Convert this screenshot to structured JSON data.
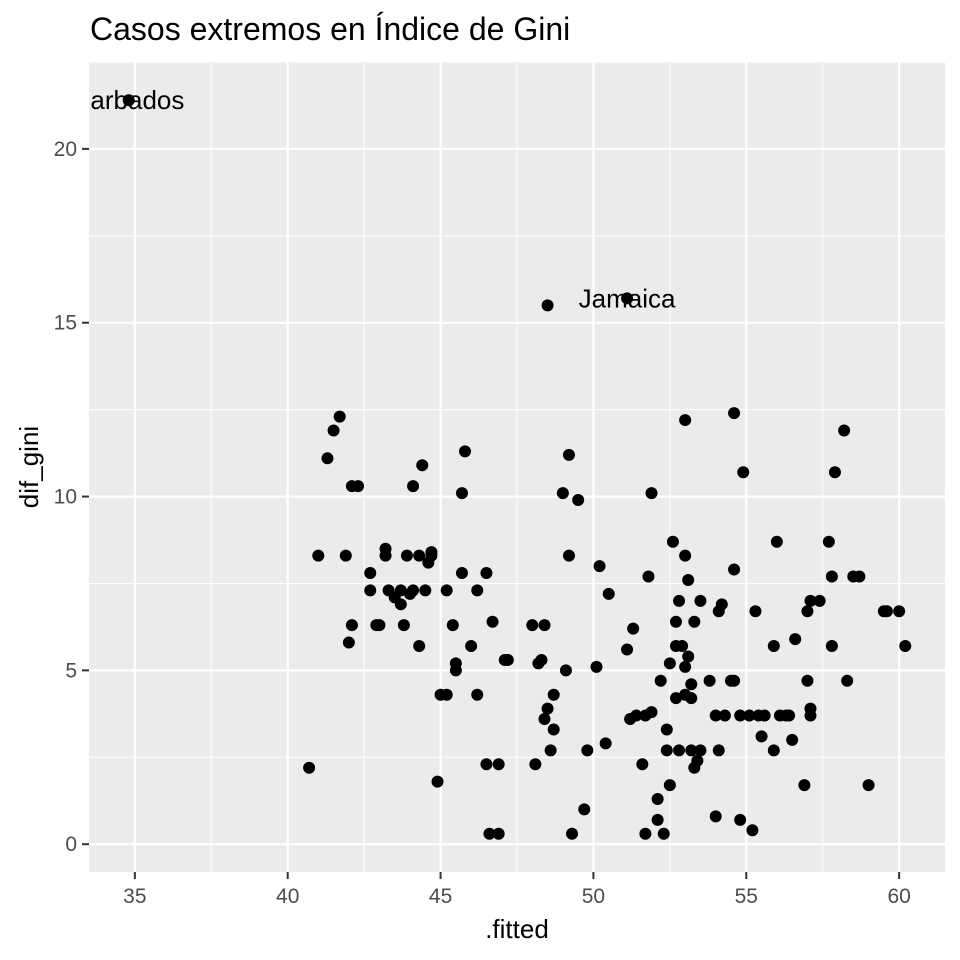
{
  "chart_data": {
    "type": "scatter",
    "title": "Casos extremos en Índice de Gini",
    "xlabel": ".fitted",
    "ylabel": "dif_gini",
    "xlim": [
      33.5,
      61.5
    ],
    "ylim": [
      -0.8,
      22.5
    ],
    "xticks": [
      "35",
      "40",
      "45",
      "50",
      "55",
      "60"
    ],
    "yticks": [
      "0",
      "5",
      "10",
      "15",
      "20"
    ],
    "grid": true,
    "background": "#EBEBEB",
    "gridline_color": "#FFFFFF",
    "point_color": "#000000",
    "points": [
      [
        34.8,
        21.4
      ],
      [
        51.1,
        15.7
      ],
      [
        48.5,
        15.5
      ],
      [
        40.7,
        2.2
      ],
      [
        41.0,
        8.3
      ],
      [
        41.3,
        11.1
      ],
      [
        41.5,
        11.9
      ],
      [
        41.7,
        12.3
      ],
      [
        41.9,
        8.3
      ],
      [
        42.0,
        5.8
      ],
      [
        42.1,
        6.3
      ],
      [
        42.1,
        10.3
      ],
      [
        42.3,
        10.3
      ],
      [
        42.7,
        7.3
      ],
      [
        42.7,
        7.8
      ],
      [
        42.9,
        6.3
      ],
      [
        43.0,
        6.3
      ],
      [
        43.2,
        8.3
      ],
      [
        43.2,
        8.5
      ],
      [
        43.3,
        7.3
      ],
      [
        43.5,
        7.1
      ],
      [
        43.7,
        7.3
      ],
      [
        43.7,
        6.9
      ],
      [
        43.8,
        6.3
      ],
      [
        43.9,
        8.3
      ],
      [
        44.0,
        7.2
      ],
      [
        44.1,
        10.3
      ],
      [
        44.1,
        7.3
      ],
      [
        44.3,
        8.3
      ],
      [
        44.3,
        5.7
      ],
      [
        44.4,
        10.9
      ],
      [
        44.5,
        7.3
      ],
      [
        44.6,
        8.1
      ],
      [
        44.7,
        8.4
      ],
      [
        44.7,
        8.3
      ],
      [
        44.9,
        1.8
      ],
      [
        45.0,
        4.3
      ],
      [
        45.2,
        4.3
      ],
      [
        45.2,
        7.3
      ],
      [
        45.4,
        6.3
      ],
      [
        45.5,
        5.2
      ],
      [
        45.5,
        5.0
      ],
      [
        45.7,
        7.8
      ],
      [
        45.7,
        10.1
      ],
      [
        45.8,
        11.3
      ],
      [
        46.0,
        5.7
      ],
      [
        46.2,
        4.3
      ],
      [
        46.2,
        7.3
      ],
      [
        46.5,
        7.8
      ],
      [
        46.5,
        2.3
      ],
      [
        46.6,
        0.3
      ],
      [
        46.7,
        6.4
      ],
      [
        46.9,
        2.3
      ],
      [
        46.9,
        0.3
      ],
      [
        47.1,
        5.3
      ],
      [
        47.2,
        5.3
      ],
      [
        48.0,
        6.3
      ],
      [
        48.1,
        2.3
      ],
      [
        48.2,
        5.2
      ],
      [
        48.3,
        5.3
      ],
      [
        48.4,
        3.6
      ],
      [
        48.4,
        6.3
      ],
      [
        48.5,
        3.9
      ],
      [
        48.6,
        2.7
      ],
      [
        48.7,
        3.3
      ],
      [
        48.7,
        4.3
      ],
      [
        49.0,
        10.1
      ],
      [
        49.1,
        5.0
      ],
      [
        49.2,
        11.2
      ],
      [
        49.2,
        8.3
      ],
      [
        49.3,
        0.3
      ],
      [
        49.5,
        9.9
      ],
      [
        49.7,
        1.0
      ],
      [
        49.8,
        2.7
      ],
      [
        50.1,
        5.1
      ],
      [
        50.2,
        8.0
      ],
      [
        50.4,
        2.9
      ],
      [
        50.5,
        7.2
      ],
      [
        51.1,
        5.6
      ],
      [
        51.2,
        3.6
      ],
      [
        51.3,
        6.2
      ],
      [
        51.4,
        3.7
      ],
      [
        51.6,
        2.3
      ],
      [
        51.7,
        0.3
      ],
      [
        51.7,
        3.7
      ],
      [
        51.8,
        7.7
      ],
      [
        51.9,
        3.8
      ],
      [
        51.9,
        10.1
      ],
      [
        52.1,
        1.3
      ],
      [
        52.1,
        0.7
      ],
      [
        52.2,
        4.7
      ],
      [
        52.3,
        0.3
      ],
      [
        52.4,
        3.3
      ],
      [
        52.4,
        2.7
      ],
      [
        52.5,
        5.2
      ],
      [
        52.5,
        1.7
      ],
      [
        52.6,
        8.7
      ],
      [
        52.7,
        4.2
      ],
      [
        52.7,
        6.4
      ],
      [
        52.7,
        5.7
      ],
      [
        52.8,
        7.0
      ],
      [
        52.8,
        2.7
      ],
      [
        52.9,
        5.7
      ],
      [
        53.0,
        8.3
      ],
      [
        53.0,
        12.2
      ],
      [
        53.0,
        5.1
      ],
      [
        53.0,
        4.3
      ],
      [
        53.1,
        5.4
      ],
      [
        53.1,
        7.6
      ],
      [
        53.2,
        4.6
      ],
      [
        53.2,
        2.7
      ],
      [
        53.2,
        4.2
      ],
      [
        53.3,
        6.4
      ],
      [
        53.3,
        2.2
      ],
      [
        53.4,
        2.4
      ],
      [
        53.5,
        7.0
      ],
      [
        53.5,
        2.7
      ],
      [
        53.8,
        4.7
      ],
      [
        54.0,
        3.7
      ],
      [
        54.0,
        0.8
      ],
      [
        54.1,
        2.7
      ],
      [
        54.1,
        6.7
      ],
      [
        54.2,
        6.9
      ],
      [
        54.3,
        3.7
      ],
      [
        54.5,
        4.7
      ],
      [
        54.6,
        12.4
      ],
      [
        54.6,
        7.9
      ],
      [
        54.6,
        4.7
      ],
      [
        54.8,
        0.7
      ],
      [
        54.8,
        3.7
      ],
      [
        54.9,
        10.7
      ],
      [
        55.1,
        3.7
      ],
      [
        55.2,
        0.4
      ],
      [
        55.3,
        6.7
      ],
      [
        55.4,
        3.7
      ],
      [
        55.5,
        3.1
      ],
      [
        55.6,
        3.7
      ],
      [
        55.9,
        5.7
      ],
      [
        55.9,
        2.7
      ],
      [
        56.0,
        8.7
      ],
      [
        56.1,
        3.7
      ],
      [
        56.3,
        3.7
      ],
      [
        56.4,
        3.7
      ],
      [
        56.5,
        3.0
      ],
      [
        56.6,
        5.9
      ],
      [
        56.9,
        1.7
      ],
      [
        57.0,
        6.7
      ],
      [
        57.0,
        4.7
      ],
      [
        57.1,
        7.0
      ],
      [
        57.1,
        3.7
      ],
      [
        57.1,
        3.9
      ],
      [
        57.4,
        7.0
      ],
      [
        57.7,
        8.7
      ],
      [
        57.8,
        5.7
      ],
      [
        57.8,
        7.7
      ],
      [
        57.9,
        10.7
      ],
      [
        58.2,
        11.9
      ],
      [
        58.3,
        4.7
      ],
      [
        58.5,
        7.7
      ],
      [
        58.7,
        7.7
      ],
      [
        59.0,
        1.7
      ],
      [
        59.5,
        6.7
      ],
      [
        59.6,
        6.7
      ],
      [
        60.0,
        6.7
      ],
      [
        60.2,
        5.7
      ]
    ],
    "annotations": [
      {
        "x": 34.8,
        "y": 21.4,
        "text": "Barbados"
      },
      {
        "x": 51.1,
        "y": 15.7,
        "text": "Jamaica"
      }
    ]
  }
}
